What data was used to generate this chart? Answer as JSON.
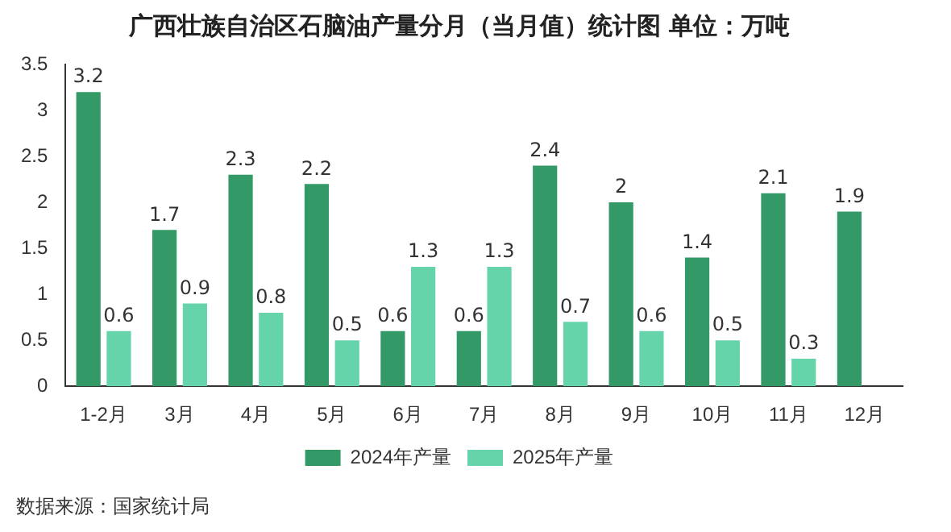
{
  "chart_data": {
    "type": "bar",
    "title": "广西壮族自治区石脑油产量分月（当月值）统计图 单位：万吨",
    "categories": [
      "1-2月",
      "3月",
      "4月",
      "5月",
      "6月",
      "7月",
      "8月",
      "9月",
      "10月",
      "11月",
      "12月"
    ],
    "series": [
      {
        "name": "2024年产量",
        "color": "#339966",
        "values": [
          3.2,
          1.7,
          2.3,
          2.2,
          0.6,
          0.6,
          2.4,
          2,
          1.4,
          2.1,
          1.9
        ]
      },
      {
        "name": "2025年产量",
        "color": "#66d4aa",
        "values": [
          0.6,
          0.9,
          0.8,
          0.5,
          1.3,
          1.3,
          0.7,
          0.6,
          0.5,
          0.3,
          null
        ]
      }
    ],
    "ylim": [
      0,
      3.5
    ],
    "yticks": [
      0,
      0.5,
      1,
      1.5,
      2,
      2.5,
      3,
      3.5
    ],
    "grid": false,
    "legend": "bottom",
    "data_labels": true,
    "annotations": [
      "数据来源：国家统计局"
    ]
  }
}
